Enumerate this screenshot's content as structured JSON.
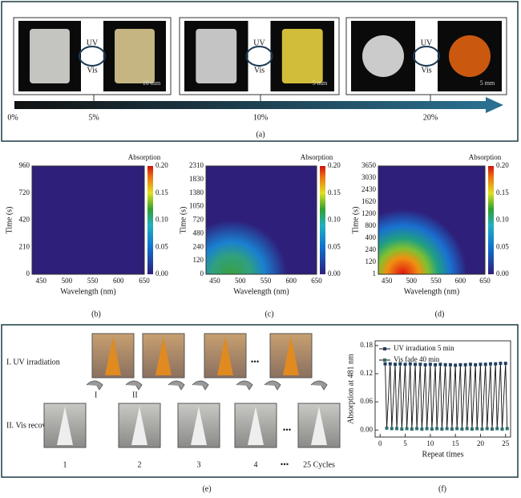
{
  "panel_a": {
    "uv": "UV",
    "vis": "Vis",
    "scales": [
      "10 mm",
      "5 mm",
      "5 mm"
    ],
    "percent": [
      "0%",
      "5%",
      "10%",
      "20%"
    ],
    "caption": "(a)"
  },
  "heatmaps": [
    {
      "colorbar_title": "Absorption",
      "colorbar_ticks": [
        0.2,
        0.15,
        0.1,
        0.05,
        0.0
      ],
      "y_label": "Time (s)",
      "x_label": "Wavelength (nm)",
      "yticks": [
        960,
        720,
        420,
        210,
        0
      ],
      "xticks": [
        450,
        500,
        550,
        600,
        650
      ],
      "caption": "(b)"
    },
    {
      "colorbar_title": "Absorption",
      "colorbar_ticks": [
        0.2,
        0.15,
        0.1,
        0.05,
        0.0
      ],
      "y_label": "Time (s)",
      "x_label": "Wavelength (nm)",
      "yticks": [
        2310,
        1830,
        1380,
        1050,
        720,
        480,
        240,
        120,
        0
      ],
      "xticks": [
        450,
        500,
        550,
        600,
        650
      ],
      "caption": "(c)"
    },
    {
      "colorbar_title": "Absorption",
      "colorbar_ticks": [
        0.2,
        0.15,
        0.1,
        0.05,
        0.0
      ],
      "y_label": "Time (s)",
      "x_label": "Wavelength (nm)",
      "yticks": [
        3650,
        3030,
        2430,
        1620,
        1200,
        800,
        400,
        240,
        120,
        1
      ],
      "xticks": [
        450,
        500,
        550,
        600,
        650
      ],
      "caption": "(d)"
    }
  ],
  "panel_e": {
    "row1": "I. UV irradiation",
    "row2": "II. Vis recover",
    "step1": "I",
    "step2": "II",
    "dots": "•••",
    "numbers": [
      "1",
      "2",
      "3",
      "4",
      "25 Cycles"
    ],
    "caption": "(e)"
  },
  "panel_f": {
    "type": "line",
    "y_label": "Absorption at 481 nm",
    "x_label": "Repeat times",
    "xlim": [
      -1,
      26
    ],
    "ylim": [
      -0.015,
      0.19
    ],
    "yticks": [
      {
        "value": 0.18,
        "label": "0.18"
      },
      {
        "value": 0.12,
        "label": "0.12"
      },
      {
        "value": 0.06,
        "label": "0.06"
      },
      {
        "value": 0,
        "label": "0.00"
      }
    ],
    "xticks": [
      0,
      5,
      10,
      15,
      20,
      25
    ],
    "x": [
      1,
      2,
      3,
      4,
      5,
      6,
      7,
      8,
      9,
      10,
      11,
      12,
      13,
      14,
      15,
      16,
      17,
      18,
      19,
      20,
      21,
      22,
      23,
      24,
      25
    ],
    "series": [
      {
        "name": "UV irradiation 5 min",
        "color": "#1f3f5f",
        "values": [
          0.141,
          0.141,
          0.14,
          0.141,
          0.14,
          0.141,
          0.14,
          0.14,
          0.139,
          0.14,
          0.139,
          0.14,
          0.139,
          0.139,
          0.138,
          0.139,
          0.139,
          0.14,
          0.139,
          0.14,
          0.14,
          0.141,
          0.141,
          0.142,
          0.142
        ]
      },
      {
        "name": "Vis fade 40 min",
        "color": "#2f6f6f",
        "values": [
          0.004,
          0.003,
          0.003,
          0.002,
          0.003,
          0.002,
          0.003,
          0.002,
          0.003,
          0.002,
          0.003,
          0.002,
          0.003,
          0.002,
          0.003,
          0.002,
          0.003,
          0.002,
          0.003,
          0.002,
          0.003,
          0.002,
          0.003,
          0.002,
          0.003
        ]
      }
    ],
    "caption": "(f)"
  }
}
